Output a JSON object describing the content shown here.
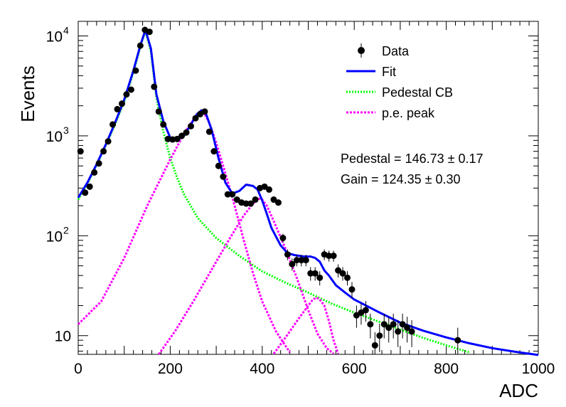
{
  "chart_data": {
    "type": "scatter",
    "xlabel": "ADC",
    "ylabel": "Events",
    "xlim": [
      0,
      1000
    ],
    "ylim": [
      6.5,
      14000
    ],
    "yscale": "log",
    "grid": false,
    "legend_position": "top-right",
    "x_ticks": [
      {
        "value": 0,
        "label": "0"
      },
      {
        "value": 200,
        "label": "200"
      },
      {
        "value": 400,
        "label": "400"
      },
      {
        "value": 600,
        "label": "600"
      },
      {
        "value": 800,
        "label": "800"
      },
      {
        "value": 1000,
        "label": "1000"
      }
    ],
    "y_ticks": [
      {
        "value": 10,
        "base": "10",
        "exp": ""
      },
      {
        "value": 100,
        "base": "10",
        "exp": "2"
      },
      {
        "value": 1000,
        "base": "10",
        "exp": "3"
      },
      {
        "value": 10000,
        "base": "10",
        "exp": "4"
      }
    ],
    "legend": [
      {
        "label": "Data",
        "style": "marker",
        "color": "#000000"
      },
      {
        "label": "Fit",
        "style": "solid",
        "color": "#0000ff"
      },
      {
        "label": "Pedestal CB",
        "style": "dotted",
        "color": "#00ff00"
      },
      {
        "label": "p.e. peak",
        "style": "dashed",
        "color": "#ff00ff"
      }
    ],
    "annotations": [
      {
        "label": "Pedestal",
        "value": "146.73",
        "error": "0.17"
      },
      {
        "label": "Gain",
        "value": "124.35",
        "error": "0.30"
      }
    ],
    "data_series": {
      "name": "Data",
      "color": "#000000",
      "x": [
        5,
        15,
        25,
        35,
        45,
        55,
        65,
        75,
        85,
        95,
        105,
        115,
        125,
        135,
        145,
        155,
        165,
        175,
        185,
        195,
        205,
        215,
        225,
        235,
        245,
        255,
        265,
        275,
        285,
        295,
        305,
        315,
        325,
        335,
        345,
        355,
        365,
        375,
        385,
        395,
        405,
        415,
        425,
        435,
        445,
        455,
        465,
        475,
        485,
        495,
        505,
        515,
        525,
        535,
        545,
        555,
        565,
        575,
        585,
        595,
        605,
        615,
        625,
        635,
        645,
        655,
        665,
        675,
        685,
        695,
        705,
        715,
        725,
        825
      ],
      "y": [
        700,
        270,
        310,
        430,
        530,
        700,
        880,
        1300,
        1850,
        2100,
        2600,
        2900,
        4500,
        8000,
        11500,
        11000,
        3100,
        1750,
        1300,
        930,
        920,
        930,
        1000,
        1080,
        1250,
        1500,
        1650,
        1750,
        1100,
        700,
        500,
        390,
        260,
        260,
        230,
        215,
        210,
        210,
        230,
        300,
        310,
        290,
        230,
        215,
        95,
        65,
        52,
        57,
        57,
        57,
        42,
        42,
        38,
        65,
        63,
        63,
        45,
        42,
        38,
        29,
        16,
        17,
        18,
        13,
        8,
        10,
        13,
        12,
        13,
        11,
        13,
        12,
        11,
        9
      ]
    },
    "fit": {
      "name": "Fit",
      "color": "#0000ff",
      "x": [
        0,
        20,
        40,
        60,
        80,
        100,
        120,
        135,
        146,
        158,
        170,
        185,
        200,
        215,
        230,
        245,
        258,
        268,
        278,
        290,
        305,
        320,
        335,
        350,
        365,
        380,
        390,
        400,
        410,
        420,
        440,
        455,
        470,
        490,
        505,
        515,
        525,
        535,
        545,
        560,
        580,
        600,
        650,
        700,
        750,
        800,
        850,
        900,
        950,
        1000
      ],
      "y": [
        240,
        340,
        520,
        820,
        1350,
        2300,
        4500,
        8000,
        11500,
        7500,
        2600,
        1400,
        960,
        900,
        1000,
        1300,
        1650,
        1800,
        1650,
        1150,
        600,
        340,
        265,
        280,
        325,
        315,
        290,
        225,
        165,
        120,
        80,
        67,
        64,
        62,
        62,
        60,
        55,
        45,
        40,
        32,
        27,
        23,
        17.5,
        13.5,
        11.2,
        9.6,
        8.4,
        7.5,
        6.9,
        6.4
      ]
    },
    "pedestal_cb": {
      "name": "Pedestal CB",
      "color": "#00ff00",
      "x": [
        0,
        20,
        40,
        60,
        80,
        100,
        120,
        135,
        146,
        158,
        170,
        185,
        200,
        215,
        230,
        260,
        300,
        350,
        400,
        450,
        500,
        550,
        600,
        650,
        700,
        750,
        800,
        850
      ],
      "y": [
        230,
        330,
        510,
        800,
        1300,
        2200,
        4300,
        7800,
        11200,
        7000,
        2400,
        1100,
        600,
        380,
        260,
        150,
        95,
        63,
        44,
        34,
        27,
        21,
        17,
        14,
        11.5,
        9.5,
        8,
        6.8
      ]
    },
    "pe_peaks": [
      {
        "name": "p.e. peak",
        "color": "#ff00ff",
        "x": [
          0,
          50,
          100,
          150,
          200,
          230,
          250,
          262,
          268,
          275,
          285,
          300,
          320,
          340,
          360,
          380,
          400,
          430,
          460
        ],
        "y": [
          13,
          22,
          60,
          200,
          580,
          1050,
          1450,
          1680,
          1750,
          1650,
          1350,
          850,
          420,
          200,
          90,
          42,
          22,
          11,
          6.8
        ]
      },
      {
        "name": "p.e. peak",
        "color": "#ff00ff",
        "x": [
          175,
          210,
          250,
          300,
          330,
          360,
          380,
          392,
          400,
          410,
          425,
          450,
          475,
          500,
          520,
          540,
          555
        ],
        "y": [
          6.5,
          11,
          22,
          55,
          95,
          160,
          210,
          235,
          230,
          200,
          140,
          75,
          38,
          18,
          10.5,
          7.5,
          6.6
        ]
      },
      {
        "name": "p.e. peak",
        "color": "#ff00ff",
        "x": [
          425,
          450,
          480,
          500,
          510,
          518,
          525,
          535,
          545,
          555,
          565
        ],
        "y": [
          6.6,
          9.5,
          15,
          20,
          23,
          24,
          23,
          20,
          14,
          9,
          6.6
        ]
      }
    ]
  }
}
